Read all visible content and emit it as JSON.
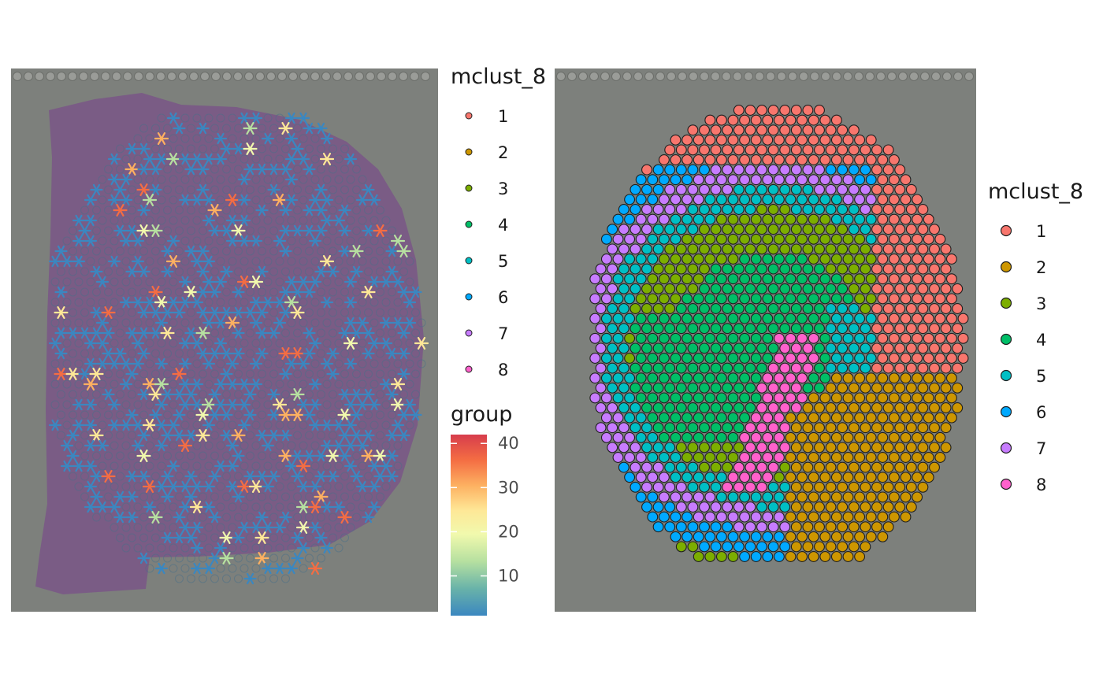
{
  "chart_data": [
    {
      "type": "scatter",
      "subtype": "spatial spot plot over tissue image",
      "title": "",
      "xlabel": "",
      "ylabel": "",
      "grid": false,
      "point_color": "group (continuous)",
      "point_shape": "mclust_8 (categorical)",
      "legend": [
        {
          "title": "mclust_8",
          "placement": "right",
          "entries": [
            "1",
            "2",
            "3",
            "4",
            "5",
            "6",
            "7",
            "8"
          ]
        },
        {
          "title": "group",
          "placement": "right",
          "kind": "colorbar",
          "range": [
            1,
            42
          ],
          "ticks": [
            10,
            20,
            30,
            40
          ],
          "tick_labels": [
            "10",
            "20",
            "30",
            "40"
          ],
          "palette": [
            "#3b87c0",
            "#69b3a9",
            "#b6e0a0",
            "#f1f9ad",
            "#fee897",
            "#fdb061",
            "#f46d43",
            "#d73d4c"
          ]
        }
      ]
    },
    {
      "type": "scatter",
      "subtype": "spatial spot plot over tissue image",
      "title": "",
      "xlabel": "",
      "ylabel": "",
      "grid": false,
      "point_color": "mclust_8",
      "legend": {
        "title": "mclust_8",
        "placement": "right",
        "entries": [
          {
            "label": "1",
            "color": "#F8766D"
          },
          {
            "label": "2",
            "color": "#CD9600"
          },
          {
            "label": "3",
            "color": "#7CAE00"
          },
          {
            "label": "4",
            "color": "#00BE67"
          },
          {
            "label": "5",
            "color": "#00BFC4"
          },
          {
            "label": "6",
            "color": "#00A9FF"
          },
          {
            "label": "7",
            "color": "#C77CFF"
          },
          {
            "label": "8",
            "color": "#FF61CC"
          }
        ]
      }
    }
  ],
  "colors": {
    "background_slide": "#7d807c",
    "tissue": "#7a5a86",
    "cluster": [
      "#F8766D",
      "#CD9600",
      "#7CAE00",
      "#00BE67",
      "#00BFC4",
      "#00A9FF",
      "#C77CFF",
      "#FF61CC"
    ],
    "left_point": "#3b87c0"
  }
}
